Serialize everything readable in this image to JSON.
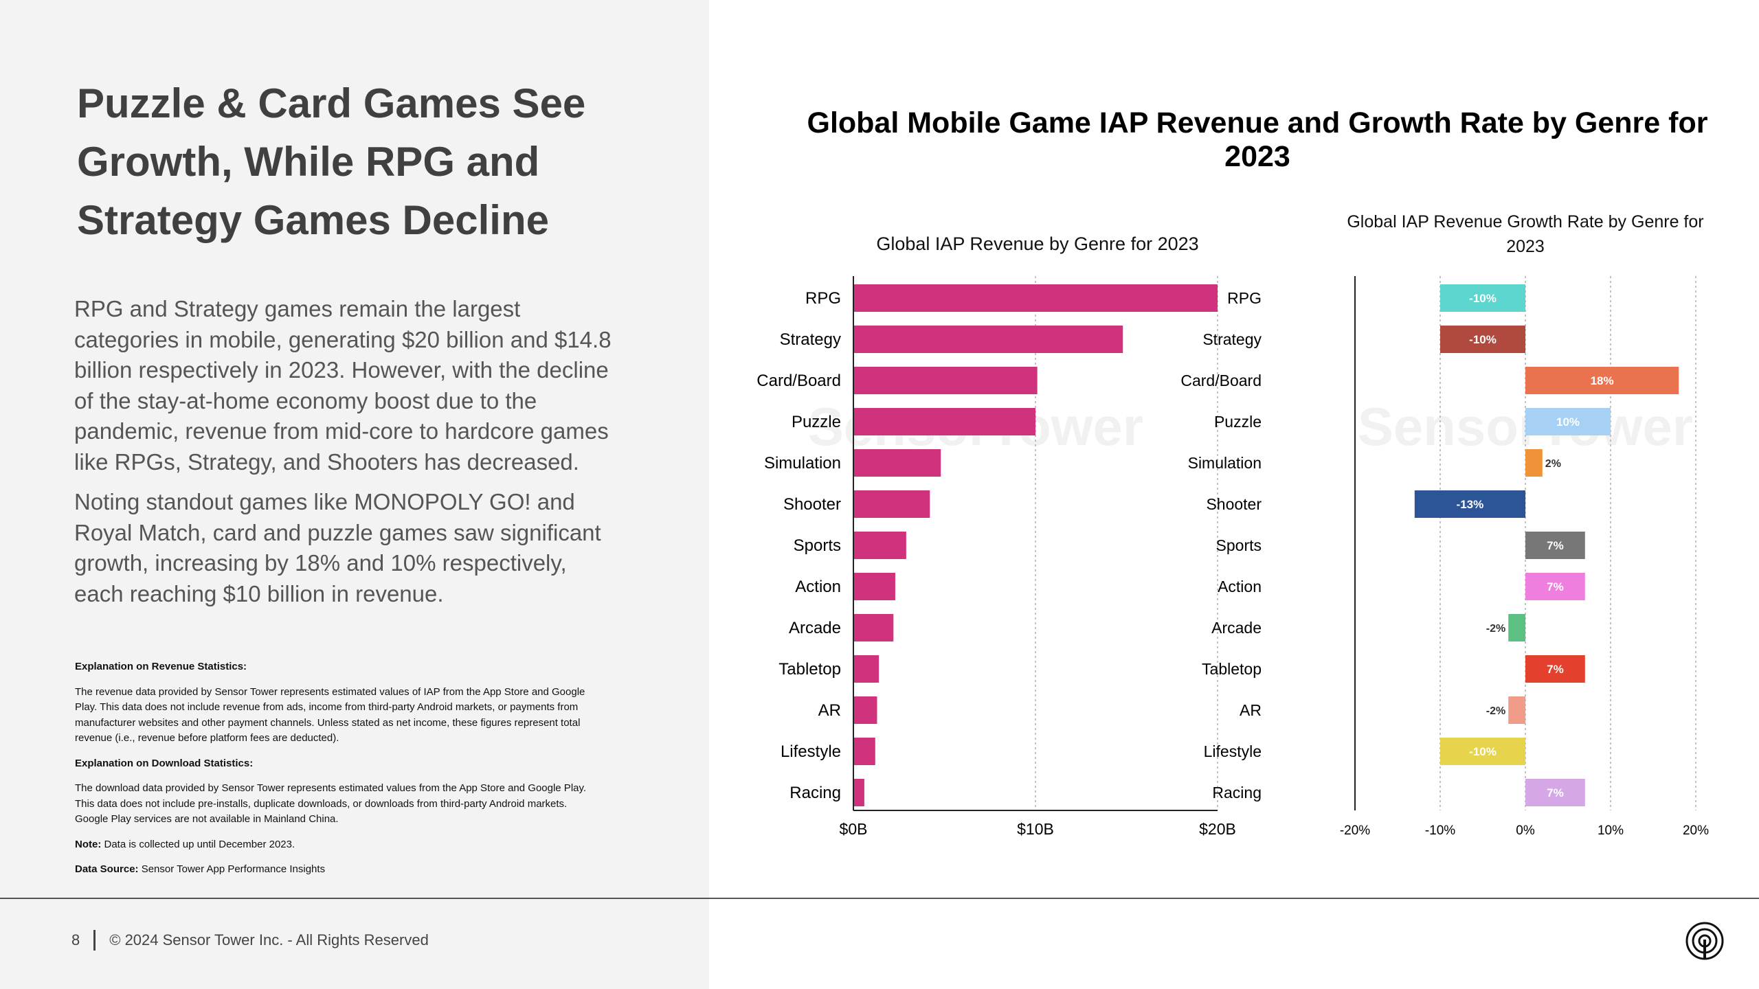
{
  "headline": "Puzzle & Card Games See Growth, While RPG and Strategy Games Decline",
  "paragraphs": [
    "RPG and Strategy games remain the largest categories in mobile, generating $20 billion and $14.8 billion respectively in 2023. However, with the decline of the stay-at-home economy boost due to the pandemic, revenue from mid-core to hardcore games like RPGs, Strategy, and Shooters has decreased.",
    "Noting standout games like MONOPOLY GO! and Royal Match, card and puzzle games saw significant growth, increasing by 18% and 10% respectively, each reaching $10 billion in revenue."
  ],
  "notes": {
    "revenue_heading": "Explanation on Revenue Statistics:",
    "revenue_text": "The revenue data provided by Sensor Tower represents estimated values of IAP from the App Store and Google Play. This data does not include revenue from ads, income from third-party Android markets, or payments from manufacturer websites and other payment channels. Unless stated as net income, these figures represent total revenue (i.e., revenue before platform fees are deducted).",
    "download_heading": "Explanation on Download Statistics:",
    "download_text": "The download data provided by Sensor Tower represents estimated values from the App Store and Google Play. This data does not include pre-installs, duplicate downloads, or downloads from third-party Android markets. Google Play services are not available in Mainland China.",
    "note_label": "Note:",
    "note_text": "Data is collected up until December 2023.",
    "source_label": "Data Source:",
    "source_text": "Sensor Tower App Performance Insights"
  },
  "footer": {
    "page_number": "8",
    "copyright": "© 2024 Sensor Tower Inc. - All Rights Reserved"
  },
  "logo_icon": "sensor-tower-logo-icon",
  "watermark_text": "SensorTower",
  "chart_title": "Global Mobile Game IAP Revenue and Growth Rate by Genre for 2023",
  "chart_data": [
    {
      "type": "bar",
      "orientation": "horizontal",
      "title": "Global IAP Revenue by Genre for 2023",
      "categories": [
        "RPG",
        "Strategy",
        "Card/Board",
        "Puzzle",
        "Simulation",
        "Shooter",
        "Sports",
        "Action",
        "Arcade",
        "Tabletop",
        "AR",
        "Lifestyle",
        "Racing"
      ],
      "values": [
        20.0,
        14.8,
        10.1,
        10.0,
        4.8,
        4.2,
        2.9,
        2.3,
        2.2,
        1.4,
        1.3,
        1.2,
        0.6
      ],
      "xlim": [
        0,
        20
      ],
      "tick_values": [
        0,
        10,
        20
      ],
      "tick_labels": [
        "$0B",
        "$10B",
        "$20B"
      ],
      "grid": true,
      "color": "#d1327d"
    },
    {
      "type": "bar",
      "orientation": "horizontal",
      "title": "Global IAP Revenue Growth Rate by Genre for 2023",
      "categories": [
        "RPG",
        "Strategy",
        "Card/Board",
        "Puzzle",
        "Simulation",
        "Shooter",
        "Sports",
        "Action",
        "Arcade",
        "Tabletop",
        "AR",
        "Lifestyle",
        "Racing"
      ],
      "values": [
        -10,
        -10,
        18,
        10,
        2,
        -13,
        7,
        7,
        -2,
        7,
        -2,
        -10,
        7
      ],
      "data_labels": [
        "-10%",
        "-10%",
        "18%",
        "10%",
        "2%",
        "-13%",
        "7%",
        "7%",
        "-2%",
        "7%",
        "-2%",
        "-10%",
        "7%"
      ],
      "colors": [
        "#5dd6cf",
        "#b04a3f",
        "#e9734f",
        "#a7d0f5",
        "#ee9338",
        "#2c5597",
        "#777777",
        "#ee7fde",
        "#5bc081",
        "#e4402e",
        "#f09c88",
        "#e7d44d",
        "#d5a7e7"
      ],
      "xlim": [
        -20,
        20
      ],
      "tick_values": [
        -20,
        -10,
        0,
        10,
        20
      ],
      "tick_labels": [
        "-20%",
        "-10%",
        "0%",
        "10%",
        "20%"
      ],
      "grid": true
    }
  ]
}
